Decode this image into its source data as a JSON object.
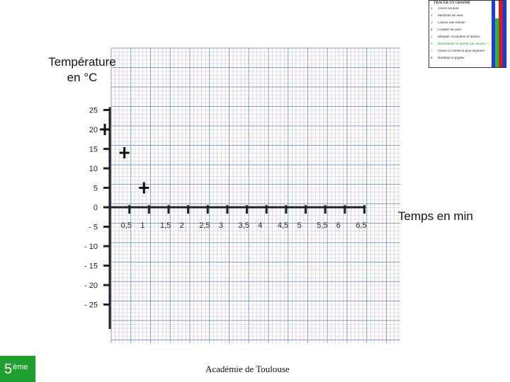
{
  "chart_data": {
    "type": "scatter",
    "ylabel_line1": "Température",
    "ylabel_line2": "en °C",
    "xlabel": "Temps en min",
    "x_ticks": [
      "0,5",
      "1",
      "1,5",
      "2",
      "2,5",
      "3",
      "3,5",
      "4",
      "4,5",
      "5",
      "5,5",
      "6",
      "6,5"
    ],
    "y_ticks": [
      "25",
      "20",
      "15",
      "10",
      "5",
      "0",
      "- 5",
      "- 10",
      "- 15",
      "- 20",
      "- 25"
    ],
    "xlim": [
      0,
      6.5
    ],
    "ylim": [
      -25,
      25
    ],
    "points": [
      {
        "x": 0,
        "y": 20
      },
      {
        "x": 0.5,
        "y": 14
      },
      {
        "x": 1,
        "y": 5
      }
    ],
    "grid": true,
    "grid_colors": [
      "#6f8fbf",
      "#c48aa8",
      "#9ba9c6"
    ]
  },
  "footer": "Académie de Toulouse",
  "grade": {
    "num": "5",
    "sup": "ème"
  },
  "legend_panel": {
    "title": "TRACER UN GRAPHE",
    "steps": [
      {
        "n": "1",
        "text": "Tracer les axes"
      },
      {
        "n": "2",
        "text": "Identifier les axes"
      },
      {
        "n": "3",
        "text": "Choisir une échelle"
      },
      {
        "n": "4",
        "text": "Graduer les axes"
      },
      {
        "n": "5",
        "text": "Indiquer «Grandeur et unités»"
      },
      {
        "n": "6",
        "text": "Représenter les points par un plus +",
        "highlight": true
      },
      {
        "n": "7",
        "text": "Tracer la courbe la plus régulière"
      },
      {
        "n": "8",
        "text": "Nommer le graphe"
      }
    ],
    "corner": "4"
  }
}
